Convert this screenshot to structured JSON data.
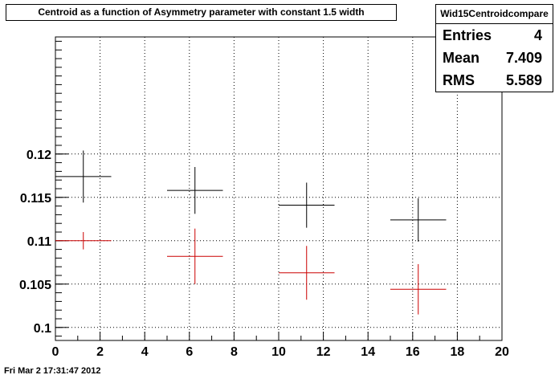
{
  "title": "Centroid as a function of Asymmetry parameter with constant 1.5 width",
  "stats": {
    "name": "Wid15Centroidcompare",
    "rows": [
      {
        "label": "Entries",
        "value": "4"
      },
      {
        "label": "Mean",
        "value": "7.409"
      },
      {
        "label": "RMS",
        "value": "5.589"
      }
    ]
  },
  "footer": "Fri Mar  2 17:31:47 2012",
  "colors": {
    "series_black": "#000000",
    "series_red": "#cc0000",
    "grid": "#000000"
  },
  "chart_data": {
    "type": "scatter",
    "error_bars": true,
    "grid": true,
    "xlim": [
      0,
      20
    ],
    "ylim": [
      0.0985,
      0.1335
    ],
    "x_ticks": [
      "0",
      "2",
      "4",
      "6",
      "8",
      "10",
      "12",
      "14",
      "16",
      "18",
      "20"
    ],
    "y_ticks": [
      "0.1",
      "0.105",
      "0.11",
      "0.115",
      "0.12"
    ],
    "y_tick_values": [
      0.1,
      0.105,
      0.11,
      0.115,
      0.12
    ],
    "series": [
      {
        "color": "#000000",
        "points": [
          {
            "x": 1.25,
            "xerr": 1.25,
            "y": 0.1174,
            "yerr": 0.003
          },
          {
            "x": 6.25,
            "xerr": 1.25,
            "y": 0.1158,
            "yerr": 0.0027
          },
          {
            "x": 11.25,
            "xerr": 1.25,
            "y": 0.1141,
            "yerr": 0.0026
          },
          {
            "x": 16.25,
            "xerr": 1.25,
            "y": 0.1124,
            "yerr": 0.0025
          }
        ]
      },
      {
        "color": "#cc0000",
        "points": [
          {
            "x": 1.25,
            "xerr": 1.25,
            "y": 0.11,
            "yerr": 0.001
          },
          {
            "x": 6.25,
            "xerr": 1.25,
            "y": 0.1082,
            "yerr": 0.0032
          },
          {
            "x": 11.25,
            "xerr": 1.25,
            "y": 0.1063,
            "yerr": 0.0031
          },
          {
            "x": 16.25,
            "xerr": 1.25,
            "y": 0.1044,
            "yerr": 0.0029
          }
        ]
      }
    ]
  }
}
